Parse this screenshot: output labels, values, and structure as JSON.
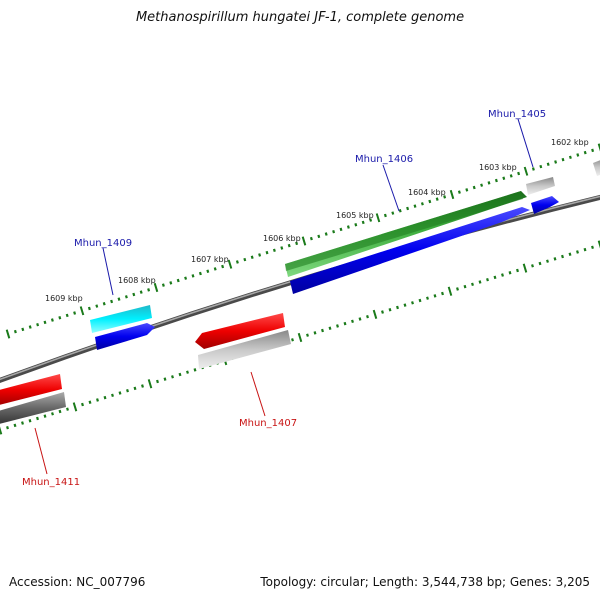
{
  "title": "Methanospirillum hungatei JF-1, complete genome",
  "footer": {
    "accession": "Accession: NC_007796",
    "summary": "Topology: circular; Length: 3,544,738 bp; Genes: 3,205"
  },
  "kbp_labels": [
    "1602 kbp",
    "1603 kbp",
    "1604 kbp",
    "1605 kbp",
    "1606 kbp",
    "1607 kbp",
    "1608 kbp",
    "1609 kbp"
  ],
  "gene_labels": {
    "mhun_1405": "Mhun_1405",
    "mhun_1406": "Mhun_1406",
    "mhun_1407": "Mhun_1407",
    "mhun_1409": "Mhun_1409",
    "mhun_1411": "Mhun_1411"
  },
  "colors": {
    "forward_label": "#1a1aaa",
    "reverse_label": "#c81414",
    "tick": "#1a7a1a",
    "backbone": "#777777"
  }
}
